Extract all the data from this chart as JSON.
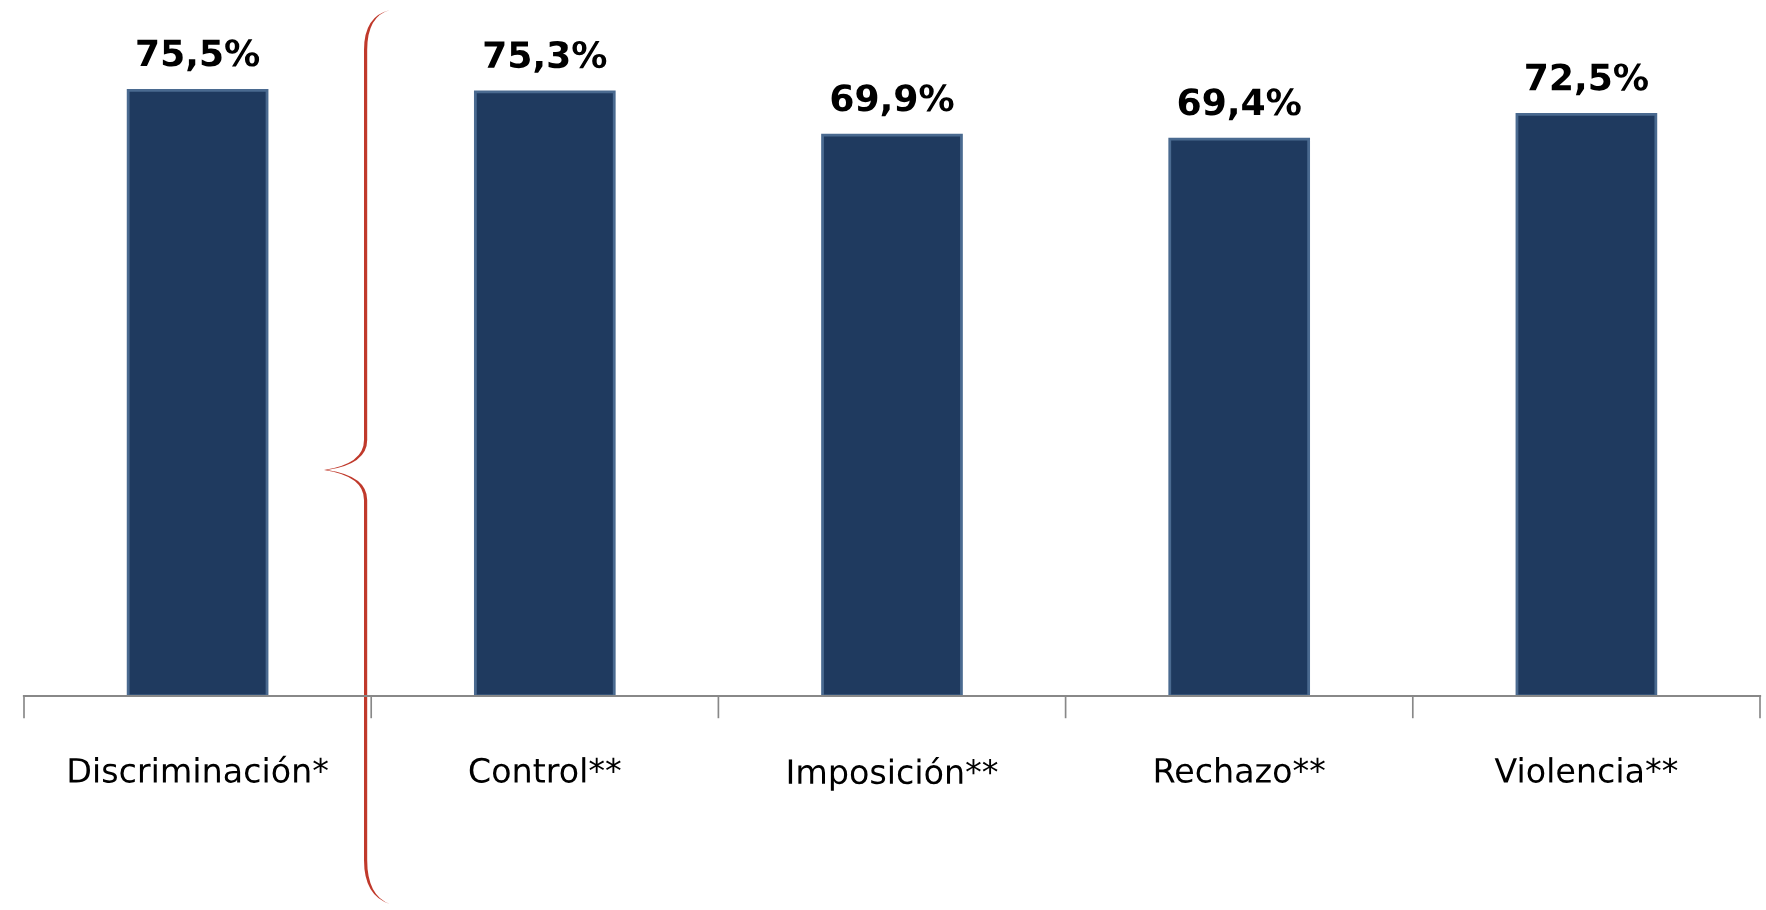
{
  "chart_data": {
    "type": "bar",
    "categories": [
      "Discriminación*",
      "Control**",
      "Imposición**",
      "Rechazo**",
      "Violencia**"
    ],
    "values": [
      75.5,
      75.3,
      69.9,
      69.4,
      72.5
    ],
    "color": "#1f3a5f",
    "data_labels": true,
    "value_labels": [
      "75,5%",
      "75,3%",
      "69,9%",
      "69,4%",
      "72,5%"
    ],
    "grid": false,
    "legend": false,
    "tick_labels": "x"
  }
}
